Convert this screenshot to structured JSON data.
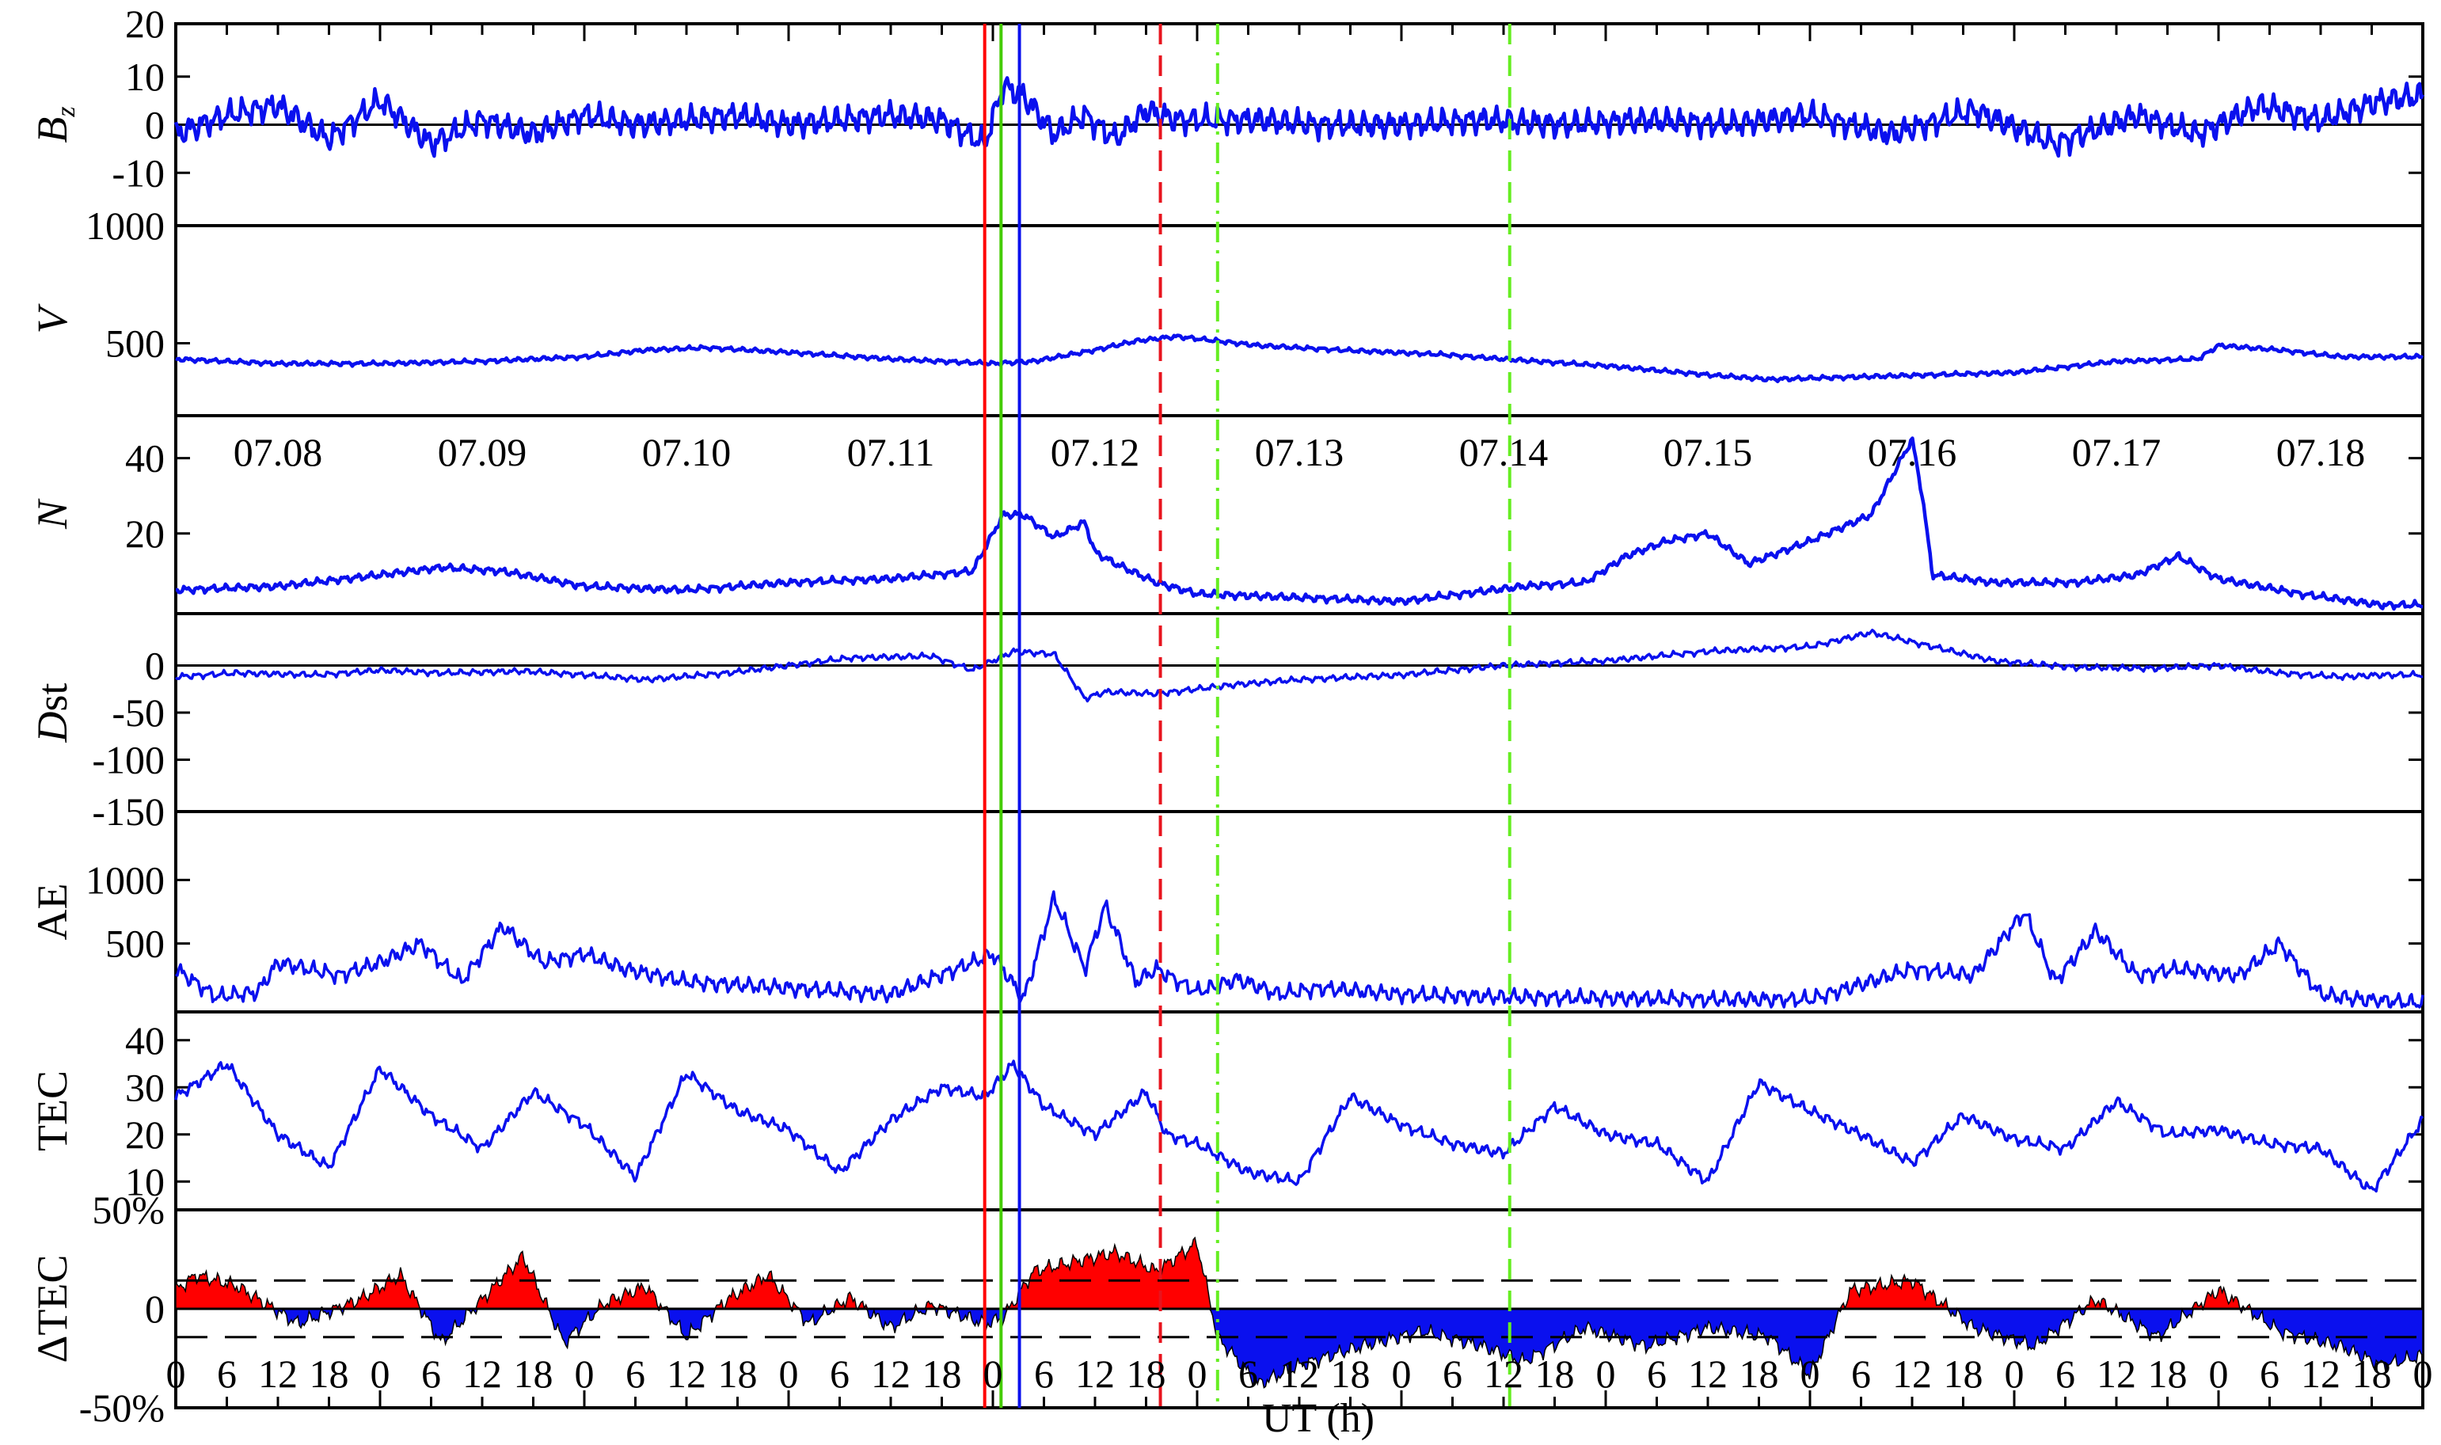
{
  "chart_data": {
    "type": "line",
    "xlabel": "UT (h)",
    "x_tick_labels": [
      "0",
      "6",
      "12",
      "18",
      "0",
      "6",
      "12",
      "18",
      "0",
      "6",
      "12",
      "18",
      "0",
      "6",
      "12",
      "18",
      "0",
      "6",
      "12",
      "18",
      "0",
      "6",
      "12",
      "18",
      "0",
      "6",
      "12",
      "18",
      "0",
      "6",
      "12",
      "18",
      "0",
      "6",
      "12",
      "18",
      "0",
      "6",
      "12",
      "18",
      "0",
      "6",
      "12",
      "18",
      "0"
    ],
    "x_range_days": [
      0,
      11
    ],
    "dates": [
      "07.08",
      "07.09",
      "07.10",
      "07.11",
      "07.12",
      "07.13",
      "07.14",
      "07.15",
      "07.16",
      "07.17",
      "07.18"
    ],
    "event_lines": [
      {
        "day": 3.96,
        "color": "#ff0000",
        "style": "solid"
      },
      {
        "day": 4.04,
        "color": "#44cc00",
        "style": "solid"
      },
      {
        "day": 4.13,
        "color": "#0a10ee",
        "style": "solid"
      },
      {
        "day": 4.82,
        "color": "#e8141e",
        "style": "dashed"
      },
      {
        "day": 5.1,
        "color": "#66ee22",
        "style": "dashdot"
      },
      {
        "day": 6.53,
        "color": "#66ee22",
        "style": "dashed"
      }
    ],
    "panels": [
      {
        "name": "Bz",
        "ylabel": "B",
        "ylabel_sub": "z",
        "ylim": [
          -20,
          20
        ],
        "yticks": [
          20,
          10,
          0,
          -10
        ],
        "ytick_labels": [
          "20",
          "10",
          "0",
          "-10"
        ],
        "zero_line": true,
        "series_color": "#0a10ee",
        "x": [
          0,
          0.25,
          0.5,
          0.75,
          1,
          1.25,
          1.5,
          1.75,
          2,
          2.25,
          2.5,
          2.75,
          3,
          3.25,
          3.5,
          3.75,
          3.96,
          4.05,
          4.15,
          4.3,
          4.45,
          4.6,
          4.75,
          4.9,
          5.1,
          5.3,
          5.6,
          6,
          6.4,
          6.8,
          7.2,
          7.6,
          8,
          8.4,
          8.8,
          9.2,
          9.6,
          9.9,
          10.2,
          10.5,
          10.8,
          11
        ],
        "y": [
          -2,
          2,
          4,
          -3,
          5,
          -4,
          1,
          -2,
          2,
          0,
          1,
          2,
          0,
          1,
          2,
          1,
          -4,
          8,
          6,
          -2,
          2,
          -3,
          3,
          1,
          1,
          1,
          0,
          0,
          1,
          0,
          1,
          0,
          2,
          -2,
          3,
          -4,
          2,
          -2,
          4,
          1,
          5,
          6
        ],
        "noise": 3.5
      },
      {
        "name": "V",
        "ylabel": "V",
        "ylim": [
          200,
          1000
        ],
        "yticks": [
          1000,
          500
        ],
        "ytick_labels": [
          "1000",
          "500"
        ],
        "series_color": "#0a10ee",
        "x": [
          0,
          0.5,
          1,
          1.5,
          2,
          2.3,
          2.6,
          3,
          3.5,
          4,
          4.2,
          4.5,
          4.7,
          4.9,
          5.1,
          5.3,
          5.7,
          6.2,
          6.5,
          7,
          7.5,
          7.8,
          8.2,
          8.6,
          9,
          9.5,
          9.9,
          10,
          10.3,
          10.6,
          11
        ],
        "y": [
          430,
          410,
          410,
          420,
          440,
          470,
          480,
          460,
          430,
          410,
          420,
          470,
          510,
          530,
          510,
          490,
          470,
          450,
          430,
          400,
          360,
          340,
          350,
          360,
          370,
          420,
          430,
          490,
          470,
          440,
          440
        ],
        "noise": 12
      },
      {
        "name": "N",
        "ylabel": "N",
        "ylim": [
          0,
          50
        ],
        "yticks": [
          40,
          20
        ],
        "ytick_labels": [
          "40",
          "20"
        ],
        "series_color": "#0a10ee",
        "x": [
          0,
          0.5,
          1,
          1.3,
          1.6,
          2,
          2.5,
          3,
          3.5,
          3.9,
          4.05,
          4.15,
          4.3,
          4.45,
          4.5,
          4.6,
          4.8,
          5,
          5.5,
          6,
          6.3,
          6.6,
          6.9,
          7.1,
          7.3,
          7.5,
          7.7,
          8,
          8.3,
          8.5,
          8.55,
          8.6,
          8.9,
          9.3,
          9.6,
          9.8,
          10,
          10.4,
          10.8,
          11
        ],
        "y": [
          5,
          6,
          9,
          11,
          10,
          6,
          5,
          7,
          8,
          10,
          25,
          25,
          19,
          23,
          15,
          12,
          7,
          4,
          3,
          2,
          4,
          6,
          7,
          14,
          18,
          20,
          12,
          18,
          25,
          45,
          30,
          9,
          7,
          7,
          9,
          14,
          8,
          4,
          1,
          1
        ],
        "noise": 1.2
      },
      {
        "name": "Dst",
        "ylabel": "D",
        "ylabel_rest": "st",
        "ylim": [
          -150,
          50
        ],
        "yticks": [
          0,
          -50,
          -100,
          -150
        ],
        "ytick_labels": [
          "0",
          "-50",
          "-100",
          "-150"
        ],
        "zero_line": true,
        "series_color": "#0a10ee",
        "x": [
          0,
          0.3,
          0.7,
          1,
          1.3,
          1.7,
          2,
          2.3,
          2.7,
          3,
          3.3,
          3.7,
          3.9,
          4.1,
          4.3,
          4.45,
          4.55,
          4.8,
          5.2,
          5.5,
          6,
          6.5,
          7,
          7.5,
          8,
          8.3,
          8.6,
          8.9,
          9.3,
          9.7,
          10,
          10.3,
          10.6,
          10.8
        ],
        "y": [
          -12,
          -8,
          -10,
          -5,
          -8,
          -6,
          -10,
          -15,
          -8,
          0,
          8,
          10,
          -5,
          15,
          12,
          -35,
          -28,
          -30,
          -20,
          -15,
          -10,
          0,
          5,
          15,
          20,
          35,
          20,
          5,
          -2,
          -3,
          0,
          -8,
          -12,
          -10
        ],
        "noise": 4
      },
      {
        "name": "AE",
        "ylabel": "AE",
        "ylim": [
          0,
          1500
        ],
        "yticks": [
          1000,
          500
        ],
        "ytick_labels": [
          "1000",
          "500"
        ],
        "series_color": "#0a10ee",
        "x": [
          0,
          0.2,
          0.4,
          0.5,
          0.8,
          1,
          1.2,
          1.4,
          1.6,
          1.8,
          2,
          2.2,
          2.5,
          3,
          3.5,
          3.9,
          4,
          4.15,
          4.3,
          4.45,
          4.55,
          4.7,
          4.8,
          5,
          5.2,
          5.4,
          5.6,
          6,
          6.5,
          7,
          7.5,
          8,
          8.5,
          8.8,
          9.05,
          9.2,
          9.4,
          9.6,
          9.8,
          10.1,
          10.3,
          10.5,
          10.7,
          11
        ],
        "y": [
          300,
          80,
          120,
          350,
          250,
          350,
          500,
          200,
          640,
          350,
          420,
          300,
          200,
          150,
          100,
          350,
          420,
          60,
          860,
          300,
          800,
          200,
          300,
          120,
          220,
          100,
          150,
          100,
          80,
          70,
          60,
          60,
          300,
          250,
          750,
          200,
          600,
          250,
          300,
          250,
          500,
          100,
          60,
          30
        ],
        "noise": 80
      },
      {
        "name": "TEC",
        "ylabel": "TEC",
        "ylim": [
          5,
          45
        ],
        "yticks": [
          40,
          30,
          20,
          10
        ],
        "ytick_labels": [
          "40",
          "30",
          "20",
          "10"
        ],
        "series_color": "#0a10ee",
        "x": [
          0,
          0.25,
          0.5,
          0.75,
          1,
          1.25,
          1.5,
          1.75,
          2,
          2.25,
          2.5,
          2.75,
          3,
          3.25,
          3.5,
          3.75,
          3.96,
          4.1,
          4.25,
          4.5,
          4.75,
          4.85,
          5,
          5.25,
          5.5,
          5.75,
          6,
          6.25,
          6.5,
          6.75,
          7,
          7.25,
          7.5,
          7.75,
          8,
          8.25,
          8.5,
          8.75,
          9,
          9.25,
          9.5,
          9.75,
          10,
          10.25,
          10.5,
          10.75,
          10.95,
          11
        ],
        "y": [
          28,
          35,
          20,
          13,
          34,
          24,
          17,
          29,
          22,
          11,
          33,
          25,
          21,
          12,
          23,
          30,
          28,
          35,
          26,
          20,
          29,
          20,
          18,
          12,
          10,
          28,
          22,
          18,
          16,
          26,
          20,
          18,
          10,
          31,
          25,
          20,
          14,
          24,
          19,
          17,
          27,
          20,
          21,
          18,
          17,
          8,
          20,
          23
        ],
        "noise": 1.5
      },
      {
        "name": "dTEC",
        "ylabel": "ΔTEC",
        "ylim": [
          -50,
          50
        ],
        "yticks": [
          50,
          0,
          -50
        ],
        "ytick_labels": [
          "50%",
          "0",
          "-50%"
        ],
        "thresholds": [
          15,
          -15
        ],
        "pos_color": "#ff0000",
        "neg_color": "#0a10ee",
        "x": [
          0,
          0.1,
          0.3,
          0.6,
          0.9,
          1.1,
          1.3,
          1.5,
          1.7,
          1.9,
          2.1,
          2.3,
          2.5,
          2.7,
          2.9,
          3.1,
          3.3,
          3.5,
          3.7,
          3.96,
          4.05,
          4.2,
          4.4,
          4.6,
          4.8,
          5,
          5.1,
          5.3,
          5.5,
          5.8,
          6.1,
          6.4,
          6.6,
          6.9,
          7.2,
          7.5,
          7.8,
          8,
          8.2,
          8.5,
          8.8,
          9.1,
          9.4,
          9.7,
          10,
          10.3,
          10.6,
          10.8,
          11
        ],
        "y": [
          10,
          18,
          12,
          -8,
          5,
          18,
          -18,
          5,
          28,
          -18,
          3,
          12,
          -15,
          5,
          18,
          -8,
          6,
          -10,
          2,
          -8,
          -5,
          20,
          25,
          30,
          20,
          35,
          -15,
          -40,
          -30,
          -20,
          -12,
          -20,
          -28,
          -10,
          -20,
          -10,
          -15,
          -35,
          10,
          15,
          -10,
          -20,
          5,
          -15,
          10,
          -12,
          -20,
          -30,
          -25
        ],
        "noise": 5
      }
    ]
  }
}
